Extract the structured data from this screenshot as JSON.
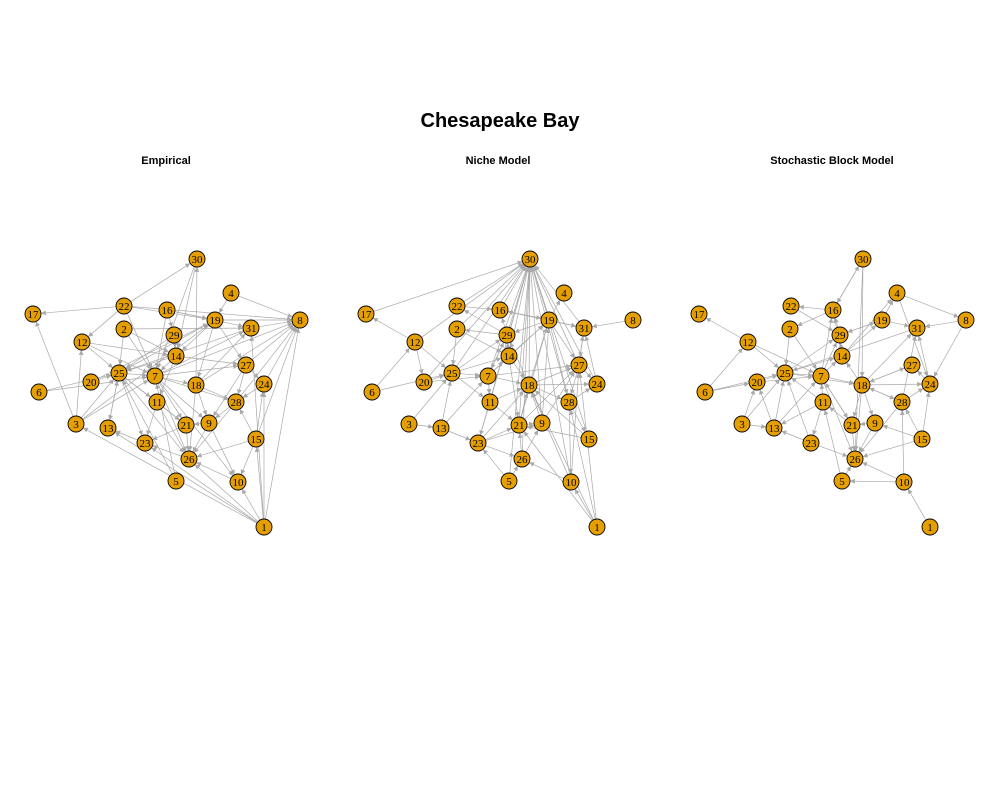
{
  "figure": {
    "title": "Chesapeake Bay",
    "colors": {
      "node_fill": "#e69f00",
      "node_border": "#000000",
      "edge": "#a9a9a9",
      "background": "#ffffff"
    }
  },
  "panels": [
    {
      "id": "empirical",
      "title": "Empirical",
      "nodes": [
        "1",
        "2",
        "3",
        "4",
        "5",
        "6",
        "7",
        "8",
        "9",
        "10",
        "11",
        "12",
        "13",
        "14",
        "15",
        "16",
        "17",
        "18",
        "19",
        "20",
        "21",
        "22",
        "23",
        "24",
        "25",
        "26",
        "27",
        "28",
        "29",
        "30",
        "31"
      ],
      "edges": [
        [
          "1",
          "8"
        ],
        [
          "1",
          "31"
        ],
        [
          "1",
          "24"
        ],
        [
          "1",
          "10"
        ],
        [
          "1",
          "26"
        ],
        [
          "1",
          "23"
        ],
        [
          "1",
          "13"
        ],
        [
          "1",
          "3"
        ],
        [
          "1",
          "15"
        ],
        [
          "3",
          "17"
        ],
        [
          "3",
          "7"
        ],
        [
          "3",
          "19"
        ],
        [
          "3",
          "25"
        ],
        [
          "3",
          "12"
        ],
        [
          "6",
          "7"
        ],
        [
          "6",
          "25"
        ],
        [
          "20",
          "25"
        ],
        [
          "20",
          "19"
        ],
        [
          "22",
          "17"
        ],
        [
          "22",
          "30"
        ],
        [
          "22",
          "8"
        ],
        [
          "22",
          "19"
        ],
        [
          "22",
          "12"
        ],
        [
          "22",
          "7"
        ],
        [
          "2",
          "25"
        ],
        [
          "2",
          "7"
        ],
        [
          "2",
          "14"
        ],
        [
          "2",
          "31"
        ],
        [
          "16",
          "7"
        ],
        [
          "16",
          "29"
        ],
        [
          "16",
          "31"
        ],
        [
          "16",
          "19"
        ],
        [
          "29",
          "25"
        ],
        [
          "29",
          "14"
        ],
        [
          "14",
          "7"
        ],
        [
          "14",
          "25"
        ],
        [
          "14",
          "27"
        ],
        [
          "14",
          "11"
        ],
        [
          "12",
          "25"
        ],
        [
          "12",
          "7"
        ],
        [
          "12",
          "14"
        ],
        [
          "25",
          "7"
        ],
        [
          "25",
          "11"
        ],
        [
          "25",
          "23"
        ],
        [
          "25",
          "13"
        ],
        [
          "25",
          "21"
        ],
        [
          "25",
          "26"
        ],
        [
          "7",
          "21"
        ],
        [
          "7",
          "26"
        ],
        [
          "7",
          "10"
        ],
        [
          "7",
          "28"
        ],
        [
          "7",
          "9"
        ],
        [
          "7",
          "18"
        ],
        [
          "7",
          "27"
        ],
        [
          "7",
          "31"
        ],
        [
          "7",
          "8"
        ],
        [
          "11",
          "23"
        ],
        [
          "11",
          "21"
        ],
        [
          "11",
          "26"
        ],
        [
          "18",
          "30"
        ],
        [
          "18",
          "9"
        ],
        [
          "18",
          "28"
        ],
        [
          "18",
          "31"
        ],
        [
          "18",
          "8"
        ],
        [
          "18",
          "26"
        ],
        [
          "19",
          "25"
        ],
        [
          "19",
          "8"
        ],
        [
          "19",
          "18"
        ],
        [
          "19",
          "27"
        ],
        [
          "19",
          "14"
        ],
        [
          "31",
          "8"
        ],
        [
          "31",
          "25"
        ],
        [
          "27",
          "24"
        ],
        [
          "27",
          "28"
        ],
        [
          "27",
          "9"
        ],
        [
          "27",
          "8"
        ],
        [
          "24",
          "28"
        ],
        [
          "24",
          "8"
        ],
        [
          "28",
          "26"
        ],
        [
          "28",
          "9"
        ],
        [
          "28",
          "8"
        ],
        [
          "15",
          "24"
        ],
        [
          "15",
          "10"
        ],
        [
          "15",
          "26"
        ],
        [
          "15",
          "8"
        ],
        [
          "15",
          "28"
        ],
        [
          "9",
          "21"
        ],
        [
          "9",
          "26"
        ],
        [
          "9",
          "10"
        ],
        [
          "21",
          "26"
        ],
        [
          "21",
          "23"
        ],
        [
          "23",
          "13"
        ],
        [
          "13",
          "25"
        ],
        [
          "5",
          "7"
        ],
        [
          "5",
          "25"
        ],
        [
          "26",
          "23"
        ],
        [
          "10",
          "26"
        ],
        [
          "4",
          "8"
        ],
        [
          "4",
          "19"
        ],
        [
          "30",
          "7"
        ],
        [
          "30",
          "14"
        ]
      ]
    },
    {
      "id": "niche",
      "title": "Niche Model",
      "nodes": [
        "1",
        "2",
        "3",
        "4",
        "5",
        "6",
        "7",
        "8",
        "9",
        "10",
        "11",
        "12",
        "13",
        "14",
        "15",
        "16",
        "17",
        "18",
        "19",
        "20",
        "21",
        "22",
        "23",
        "24",
        "25",
        "26",
        "27",
        "28",
        "29",
        "30",
        "31"
      ],
      "edges": [
        [
          "17",
          "30"
        ],
        [
          "12",
          "30"
        ],
        [
          "20",
          "30"
        ],
        [
          "25",
          "30"
        ],
        [
          "7",
          "30"
        ],
        [
          "11",
          "30"
        ],
        [
          "14",
          "30"
        ],
        [
          "18",
          "30"
        ],
        [
          "21",
          "30"
        ],
        [
          "9",
          "30"
        ],
        [
          "26",
          "30"
        ],
        [
          "23",
          "30"
        ],
        [
          "10",
          "30"
        ],
        [
          "15",
          "30"
        ],
        [
          "27",
          "30"
        ],
        [
          "29",
          "30"
        ],
        [
          "2",
          "30"
        ],
        [
          "22",
          "30"
        ],
        [
          "16",
          "30"
        ],
        [
          "19",
          "30"
        ],
        [
          "31",
          "30"
        ],
        [
          "28",
          "30"
        ],
        [
          "24",
          "30"
        ],
        [
          "5",
          "30"
        ],
        [
          "6",
          "12"
        ],
        [
          "6",
          "25"
        ],
        [
          "12",
          "17"
        ],
        [
          "12",
          "20"
        ],
        [
          "12",
          "25"
        ],
        [
          "3",
          "13"
        ],
        [
          "3",
          "25"
        ],
        [
          "13",
          "25"
        ],
        [
          "13",
          "23"
        ],
        [
          "13",
          "7"
        ],
        [
          "20",
          "25"
        ],
        [
          "20",
          "7"
        ],
        [
          "25",
          "7"
        ],
        [
          "25",
          "14"
        ],
        [
          "25",
          "11"
        ],
        [
          "25",
          "29"
        ],
        [
          "7",
          "14"
        ],
        [
          "7",
          "11"
        ],
        [
          "7",
          "18"
        ],
        [
          "7",
          "19"
        ],
        [
          "7",
          "27"
        ],
        [
          "7",
          "29"
        ],
        [
          "11",
          "23"
        ],
        [
          "11",
          "21"
        ],
        [
          "11",
          "18"
        ],
        [
          "23",
          "26"
        ],
        [
          "23",
          "21"
        ],
        [
          "23",
          "18"
        ],
        [
          "23",
          "9"
        ],
        [
          "5",
          "23"
        ],
        [
          "5",
          "26"
        ],
        [
          "26",
          "9"
        ],
        [
          "26",
          "21"
        ],
        [
          "21",
          "18"
        ],
        [
          "21",
          "9"
        ],
        [
          "21",
          "27"
        ],
        [
          "21",
          "19"
        ],
        [
          "18",
          "27"
        ],
        [
          "18",
          "24"
        ],
        [
          "18",
          "19"
        ],
        [
          "18",
          "29"
        ],
        [
          "18",
          "28"
        ],
        [
          "9",
          "19"
        ],
        [
          "9",
          "18"
        ],
        [
          "9",
          "27"
        ],
        [
          "19",
          "4"
        ],
        [
          "19",
          "31"
        ],
        [
          "19",
          "27"
        ],
        [
          "19",
          "28"
        ],
        [
          "19",
          "29"
        ],
        [
          "19",
          "16"
        ],
        [
          "27",
          "24"
        ],
        [
          "27",
          "28"
        ],
        [
          "27",
          "31"
        ],
        [
          "31",
          "27"
        ],
        [
          "28",
          "24"
        ],
        [
          "28",
          "15"
        ],
        [
          "28",
          "10"
        ],
        [
          "1",
          "28"
        ],
        [
          "1",
          "18"
        ],
        [
          "1",
          "21"
        ],
        [
          "1",
          "27"
        ],
        [
          "1",
          "10"
        ],
        [
          "10",
          "18"
        ],
        [
          "10",
          "26"
        ],
        [
          "10",
          "27"
        ],
        [
          "15",
          "18"
        ],
        [
          "15",
          "21"
        ],
        [
          "14",
          "29"
        ],
        [
          "14",
          "19"
        ],
        [
          "14",
          "18"
        ],
        [
          "14",
          "21"
        ],
        [
          "29",
          "16"
        ],
        [
          "29",
          "22"
        ],
        [
          "29",
          "2"
        ],
        [
          "29",
          "7"
        ],
        [
          "16",
          "19"
        ],
        [
          "16",
          "31"
        ],
        [
          "22",
          "16"
        ],
        [
          "2",
          "14"
        ],
        [
          "2",
          "25"
        ],
        [
          "8",
          "31"
        ],
        [
          "24",
          "31"
        ]
      ]
    },
    {
      "id": "sbm",
      "title": "Stochastic Block Model",
      "nodes": [
        "1",
        "2",
        "3",
        "4",
        "5",
        "6",
        "7",
        "8",
        "9",
        "10",
        "11",
        "12",
        "13",
        "14",
        "15",
        "16",
        "17",
        "18",
        "19",
        "20",
        "21",
        "22",
        "23",
        "24",
        "25",
        "26",
        "27",
        "28",
        "29",
        "30",
        "31"
      ],
      "edges": [
        [
          "1",
          "10"
        ],
        [
          "10",
          "26"
        ],
        [
          "10",
          "5"
        ],
        [
          "10",
          "28"
        ],
        [
          "5",
          "26"
        ],
        [
          "5",
          "11"
        ],
        [
          "15",
          "26"
        ],
        [
          "15",
          "28"
        ],
        [
          "15",
          "9"
        ],
        [
          "15",
          "24"
        ],
        [
          "28",
          "26"
        ],
        [
          "28",
          "24"
        ],
        [
          "28",
          "31"
        ],
        [
          "28",
          "18"
        ],
        [
          "9",
          "26"
        ],
        [
          "9",
          "21"
        ],
        [
          "21",
          "26"
        ],
        [
          "21",
          "7"
        ],
        [
          "21",
          "11"
        ],
        [
          "11",
          "23"
        ],
        [
          "11",
          "13"
        ],
        [
          "11",
          "7"
        ],
        [
          "11",
          "25"
        ],
        [
          "23",
          "13"
        ],
        [
          "23",
          "26"
        ],
        [
          "23",
          "25"
        ],
        [
          "3",
          "20"
        ],
        [
          "3",
          "13"
        ],
        [
          "3",
          "25"
        ],
        [
          "13",
          "20"
        ],
        [
          "13",
          "25"
        ],
        [
          "13",
          "7"
        ],
        [
          "6",
          "20"
        ],
        [
          "6",
          "12"
        ],
        [
          "6",
          "25"
        ],
        [
          "20",
          "25"
        ],
        [
          "20",
          "7"
        ],
        [
          "12",
          "17"
        ],
        [
          "12",
          "25"
        ],
        [
          "12",
          "7"
        ],
        [
          "25",
          "7"
        ],
        [
          "25",
          "14"
        ],
        [
          "25",
          "29"
        ],
        [
          "25",
          "18"
        ],
        [
          "7",
          "29"
        ],
        [
          "7",
          "14"
        ],
        [
          "7",
          "18"
        ],
        [
          "7",
          "21"
        ],
        [
          "7",
          "26"
        ],
        [
          "7",
          "16"
        ],
        [
          "18",
          "31"
        ],
        [
          "18",
          "24"
        ],
        [
          "18",
          "28"
        ],
        [
          "18",
          "21"
        ],
        [
          "18",
          "26"
        ],
        [
          "18",
          "9"
        ],
        [
          "18",
          "14"
        ],
        [
          "18",
          "27"
        ],
        [
          "14",
          "29"
        ],
        [
          "14",
          "16"
        ],
        [
          "14",
          "4"
        ],
        [
          "14",
          "19"
        ],
        [
          "29",
          "16"
        ],
        [
          "29",
          "19"
        ],
        [
          "16",
          "22"
        ],
        [
          "16",
          "30"
        ],
        [
          "16",
          "2"
        ],
        [
          "2",
          "7"
        ],
        [
          "2",
          "25"
        ],
        [
          "19",
          "31"
        ],
        [
          "19",
          "4"
        ],
        [
          "19",
          "29"
        ],
        [
          "4",
          "8"
        ],
        [
          "4",
          "24"
        ],
        [
          "8",
          "31"
        ],
        [
          "8",
          "24"
        ],
        [
          "24",
          "27"
        ],
        [
          "24",
          "31"
        ],
        [
          "27",
          "18"
        ],
        [
          "31",
          "25"
        ],
        [
          "30",
          "26"
        ],
        [
          "30",
          "16"
        ],
        [
          "30",
          "18"
        ],
        [
          "22",
          "29"
        ]
      ]
    }
  ]
}
